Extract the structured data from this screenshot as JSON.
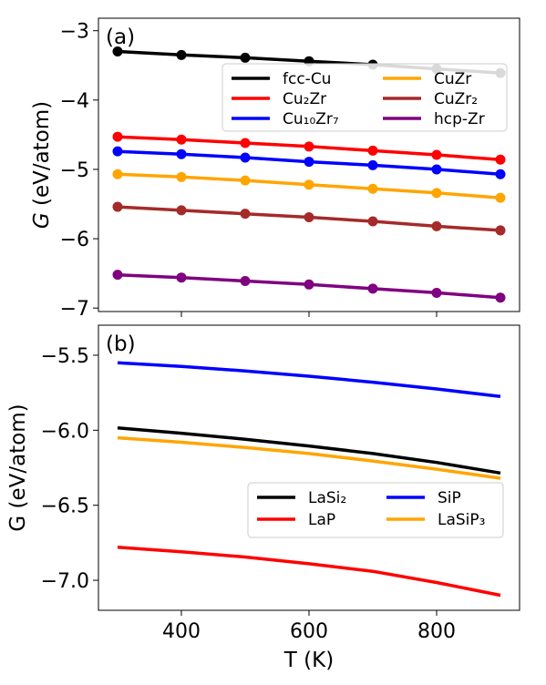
{
  "chart_data": [
    {
      "type": "line",
      "panel_label": "(a)",
      "ylabel_symbol": "G",
      "ylabel_unit": " (eV/atom)",
      "xlim": [
        270,
        930
      ],
      "ylim": [
        -7.05,
        -2.82
      ],
      "yticks": [
        -3,
        -4,
        -5,
        -6,
        -7
      ],
      "ytick_labels": [
        "−3",
        "−4",
        "−5",
        "−6",
        "−7"
      ],
      "xticks": [
        400,
        600,
        800
      ],
      "show_xtick_labels": false,
      "markers": true,
      "x": [
        300,
        400,
        500,
        600,
        700,
        800,
        900
      ],
      "legend_columns": 2,
      "series": [
        {
          "name": "fcc-Cu",
          "color": "#000000",
          "values": [
            -3.3,
            -3.35,
            -3.39,
            -3.44,
            -3.49,
            -3.55,
            -3.61
          ]
        },
        {
          "name": "Cu₂Zr",
          "color": "#ff0000",
          "values": [
            -4.53,
            -4.57,
            -4.62,
            -4.67,
            -4.73,
            -4.79,
            -4.86
          ]
        },
        {
          "name": "Cu₁₀Zr₇",
          "color": "#0000ff",
          "values": [
            -4.74,
            -4.78,
            -4.83,
            -4.89,
            -4.94,
            -5.0,
            -5.07
          ]
        },
        {
          "name": "CuZr",
          "color": "#ffa500",
          "values": [
            -5.07,
            -5.11,
            -5.16,
            -5.22,
            -5.28,
            -5.34,
            -5.41
          ]
        },
        {
          "name": "CuZr₂",
          "color": "#a52a2a",
          "values": [
            -5.54,
            -5.59,
            -5.64,
            -5.69,
            -5.75,
            -5.82,
            -5.88
          ]
        },
        {
          "name": "hcp-Zr",
          "color": "#800080",
          "values": [
            -6.52,
            -6.56,
            -6.61,
            -6.66,
            -6.72,
            -6.78,
            -6.85
          ]
        }
      ]
    },
    {
      "type": "line",
      "panel_label": "(b)",
      "ylabel": "G (eV/atom)",
      "xlabel": "T (K)",
      "xlim": [
        270,
        930
      ],
      "ylim": [
        -7.2,
        -5.3
      ],
      "yticks": [
        -5.5,
        -6.0,
        -6.5,
        -7.0
      ],
      "ytick_labels": [
        "−5.5",
        "−6.0",
        "−6.5",
        "−7.0"
      ],
      "xticks": [
        400,
        600,
        800
      ],
      "xtick_labels": [
        "400",
        "600",
        "800"
      ],
      "show_xtick_labels": true,
      "markers": false,
      "x": [
        300,
        400,
        500,
        600,
        700,
        800,
        900
      ],
      "legend_columns": 2,
      "series": [
        {
          "name": "LaSi₂",
          "color": "#000000",
          "values": [
            -5.985,
            -6.02,
            -6.06,
            -6.105,
            -6.155,
            -6.215,
            -6.285
          ]
        },
        {
          "name": "LaP",
          "color": "#ff0000",
          "values": [
            -6.78,
            -6.81,
            -6.845,
            -6.89,
            -6.94,
            -7.015,
            -7.1
          ]
        },
        {
          "name": "SiP",
          "color": "#0000ff",
          "values": [
            -5.55,
            -5.575,
            -5.605,
            -5.64,
            -5.68,
            -5.725,
            -5.775
          ]
        },
        {
          "name": "LaSiP₃",
          "color": "#ffa500",
          "values": [
            -6.05,
            -6.08,
            -6.115,
            -6.155,
            -6.205,
            -6.26,
            -6.32
          ]
        }
      ]
    }
  ]
}
